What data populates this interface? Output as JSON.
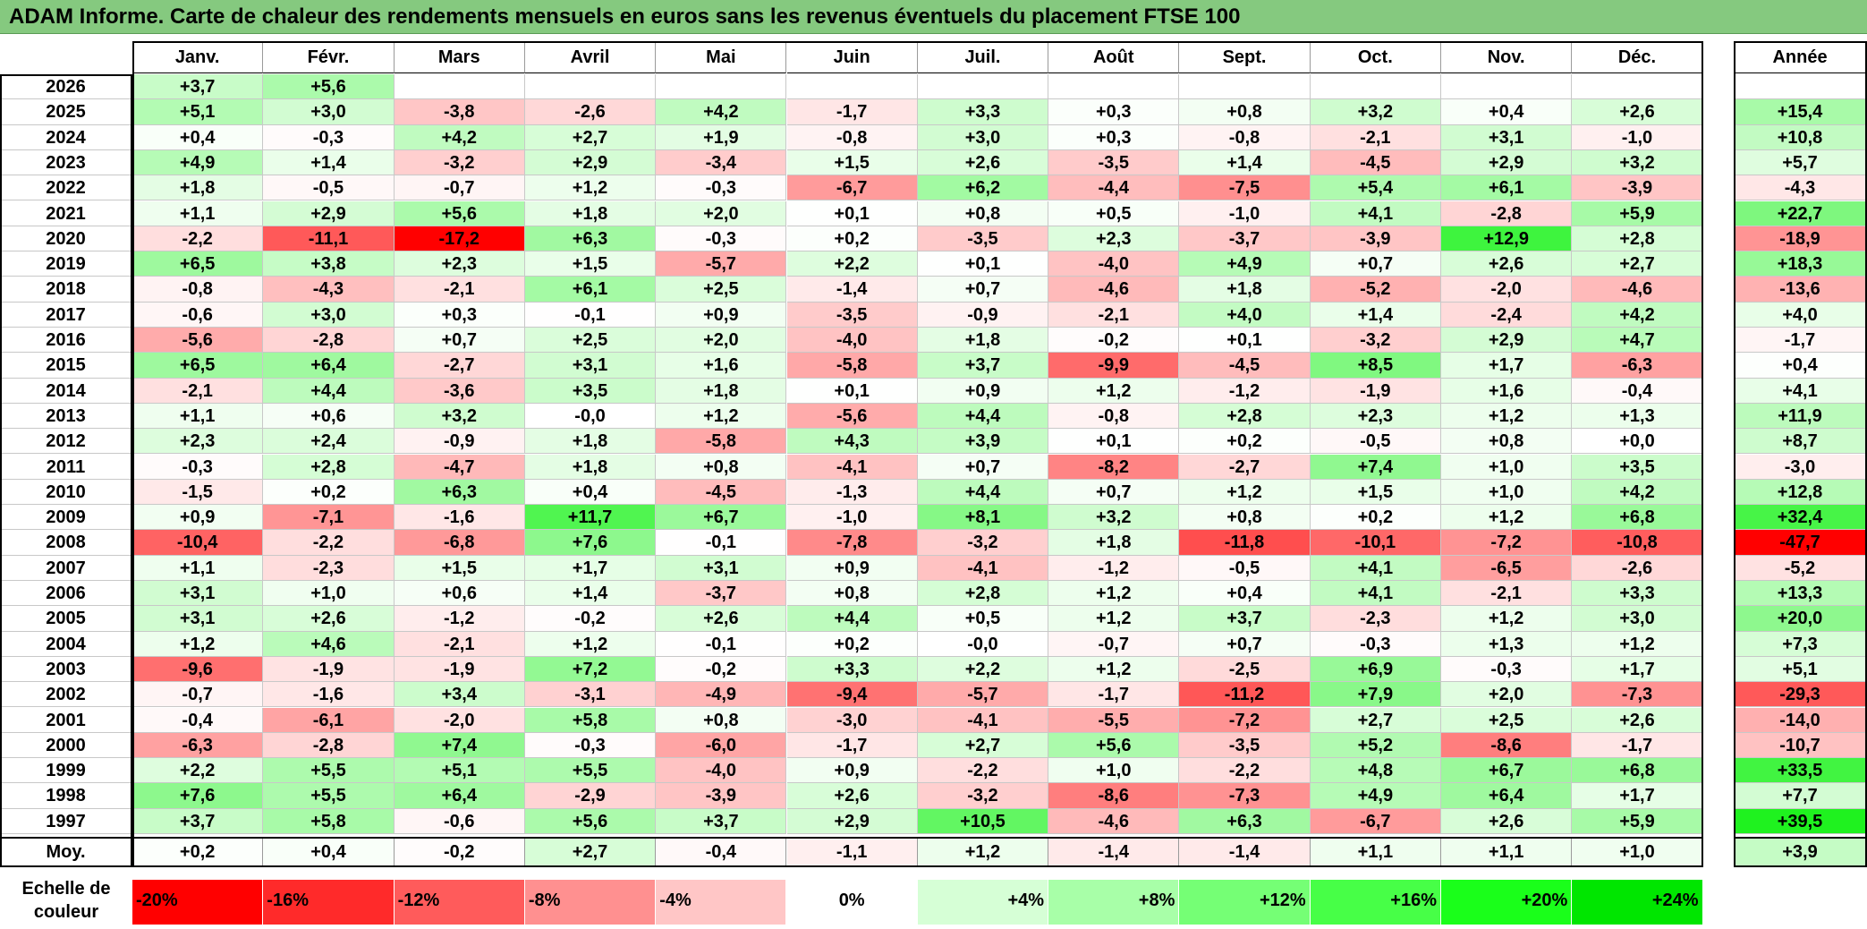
{
  "title": "ADAM Informe. Carte de chaleur des rendements mensuels en euros sans les revenus éventuels du placement FTSE 100",
  "chart_data": {
    "type": "heatmap",
    "title": "ADAM Informe. Carte de chaleur des rendements mensuels en euros sans les revenus éventuels du placement FTSE 100",
    "months": [
      "Janv.",
      "Févr.",
      "Mars",
      "Avril",
      "Mai",
      "Juin",
      "Juil.",
      "Août",
      "Sept.",
      "Oct.",
      "Nov.",
      "Déc."
    ],
    "annual_header": "Année",
    "rows": [
      {
        "year": "2026",
        "values": [
          "+3,7",
          "+5,6",
          "",
          "",
          "",
          "",
          "",
          "",
          "",
          "",
          "",
          ""
        ],
        "annual": ""
      },
      {
        "year": "2025",
        "values": [
          "+5,1",
          "+3,0",
          "-3,8",
          "-2,6",
          "+4,2",
          "-1,7",
          "+3,3",
          "+0,3",
          "+0,8",
          "+3,2",
          "+0,4",
          "+2,6"
        ],
        "annual": "+15,4"
      },
      {
        "year": "2024",
        "values": [
          "+0,4",
          "-0,3",
          "+4,2",
          "+2,7",
          "+1,9",
          "-0,8",
          "+3,0",
          "+0,3",
          "-0,8",
          "-2,1",
          "+3,1",
          "-1,0"
        ],
        "annual": "+10,8"
      },
      {
        "year": "2023",
        "values": [
          "+4,9",
          "+1,4",
          "-3,2",
          "+2,9",
          "-3,4",
          "+1,5",
          "+2,6",
          "-3,5",
          "+1,4",
          "-4,5",
          "+2,9",
          "+3,2"
        ],
        "annual": "+5,7"
      },
      {
        "year": "2022",
        "values": [
          "+1,8",
          "-0,5",
          "-0,7",
          "+1,2",
          "-0,3",
          "-6,7",
          "+6,2",
          "-4,4",
          "-7,5",
          "+5,4",
          "+6,1",
          "-3,9"
        ],
        "annual": "-4,3"
      },
      {
        "year": "2021",
        "values": [
          "+1,1",
          "+2,9",
          "+5,6",
          "+1,8",
          "+2,0",
          "+0,1",
          "+0,8",
          "+0,5",
          "-1,0",
          "+4,1",
          "-2,8",
          "+5,9"
        ],
        "annual": "+22,7"
      },
      {
        "year": "2020",
        "values": [
          "-2,2",
          "-11,1",
          "-17,2",
          "+6,3",
          "-0,3",
          "+0,2",
          "-3,5",
          "+2,3",
          "-3,7",
          "-3,9",
          "+12,9",
          "+2,8"
        ],
        "annual": "-18,9"
      },
      {
        "year": "2019",
        "values": [
          "+6,5",
          "+3,8",
          "+2,3",
          "+1,5",
          "-5,7",
          "+2,2",
          "+0,1",
          "-4,0",
          "+4,9",
          "+0,7",
          "+2,6",
          "+2,7"
        ],
        "annual": "+18,3"
      },
      {
        "year": "2018",
        "values": [
          "-0,8",
          "-4,3",
          "-2,1",
          "+6,1",
          "+2,5",
          "-1,4",
          "+0,7",
          "-4,6",
          "+1,8",
          "-5,2",
          "-2,0",
          "-4,6"
        ],
        "annual": "-13,6"
      },
      {
        "year": "2017",
        "values": [
          "-0,6",
          "+3,0",
          "+0,3",
          "-0,1",
          "+0,9",
          "-3,5",
          "-0,9",
          "-2,1",
          "+4,0",
          "+1,4",
          "-2,4",
          "+4,2"
        ],
        "annual": "+4,0"
      },
      {
        "year": "2016",
        "values": [
          "-5,6",
          "-2,8",
          "+0,7",
          "+2,5",
          "+2,0",
          "-4,0",
          "+1,8",
          "-0,2",
          "+0,1",
          "-3,2",
          "+2,9",
          "+4,7"
        ],
        "annual": "-1,7"
      },
      {
        "year": "2015",
        "values": [
          "+6,5",
          "+6,4",
          "-2,7",
          "+3,1",
          "+1,6",
          "-5,8",
          "+3,7",
          "-9,9",
          "-4,5",
          "+8,5",
          "+1,7",
          "-6,3"
        ],
        "annual": "+0,4"
      },
      {
        "year": "2014",
        "values": [
          "-2,1",
          "+4,4",
          "-3,6",
          "+3,5",
          "+1,8",
          "+0,1",
          "+0,9",
          "+1,2",
          "-1,2",
          "-1,9",
          "+1,6",
          "-0,4"
        ],
        "annual": "+4,1"
      },
      {
        "year": "2013",
        "values": [
          "+1,1",
          "+0,6",
          "+3,2",
          "-0,0",
          "+1,2",
          "-5,6",
          "+4,4",
          "-0,8",
          "+2,8",
          "+2,3",
          "+1,2",
          "+1,3"
        ],
        "annual": "+11,9"
      },
      {
        "year": "2012",
        "values": [
          "+2,3",
          "+2,4",
          "-0,9",
          "+1,8",
          "-5,8",
          "+4,3",
          "+3,9",
          "+0,1",
          "+0,2",
          "-0,5",
          "+0,8",
          "+0,0"
        ],
        "annual": "+8,7"
      },
      {
        "year": "2011",
        "values": [
          "-0,3",
          "+2,8",
          "-4,7",
          "+1,8",
          "+0,8",
          "-4,1",
          "+0,7",
          "-8,2",
          "-2,7",
          "+7,4",
          "+1,0",
          "+3,5"
        ],
        "annual": "-3,0"
      },
      {
        "year": "2010",
        "values": [
          "-1,5",
          "+0,2",
          "+6,3",
          "+0,4",
          "-4,5",
          "-1,3",
          "+4,4",
          "+0,7",
          "+1,2",
          "+1,5",
          "+1,0",
          "+4,2"
        ],
        "annual": "+12,8"
      },
      {
        "year": "2009",
        "values": [
          "+0,9",
          "-7,1",
          "-1,6",
          "+11,7",
          "+6,7",
          "-1,0",
          "+8,1",
          "+3,2",
          "+0,8",
          "+0,2",
          "+1,2",
          "+6,8"
        ],
        "annual": "+32,4"
      },
      {
        "year": "2008",
        "values": [
          "-10,4",
          "-2,2",
          "-6,8",
          "+7,6",
          "-0,1",
          "-7,8",
          "-3,2",
          "+1,8",
          "-11,8",
          "-10,1",
          "-7,2",
          "-10,8"
        ],
        "annual": "-47,7"
      },
      {
        "year": "2007",
        "values": [
          "+1,1",
          "-2,3",
          "+1,5",
          "+1,7",
          "+3,1",
          "+0,9",
          "-4,1",
          "-1,2",
          "-0,5",
          "+4,1",
          "-6,5",
          "-2,6"
        ],
        "annual": "-5,2"
      },
      {
        "year": "2006",
        "values": [
          "+3,1",
          "+1,0",
          "+0,6",
          "+1,4",
          "-3,7",
          "+0,8",
          "+2,8",
          "+1,2",
          "+0,4",
          "+4,1",
          "-2,1",
          "+3,3"
        ],
        "annual": "+13,3"
      },
      {
        "year": "2005",
        "values": [
          "+3,1",
          "+2,6",
          "-1,2",
          "-0,2",
          "+2,6",
          "+4,4",
          "+0,5",
          "+1,2",
          "+3,7",
          "-2,3",
          "+1,2",
          "+3,0"
        ],
        "annual": "+20,0"
      },
      {
        "year": "2004",
        "values": [
          "+1,2",
          "+4,6",
          "-2,1",
          "+1,2",
          "-0,1",
          "+0,2",
          "-0,0",
          "-0,7",
          "+0,7",
          "-0,3",
          "+1,3",
          "+1,2"
        ],
        "annual": "+7,3"
      },
      {
        "year": "2003",
        "values": [
          "-9,6",
          "-1,9",
          "-1,9",
          "+7,2",
          "-0,2",
          "+3,3",
          "+2,2",
          "+1,2",
          "-2,5",
          "+6,9",
          "-0,3",
          "+1,7"
        ],
        "annual": "+5,1"
      },
      {
        "year": "2002",
        "values": [
          "-0,7",
          "-1,6",
          "+3,4",
          "-3,1",
          "-4,9",
          "-9,4",
          "-5,7",
          "-1,7",
          "-11,2",
          "+7,9",
          "+2,0",
          "-7,3"
        ],
        "annual": "-29,3"
      },
      {
        "year": "2001",
        "values": [
          "-0,4",
          "-6,1",
          "-2,0",
          "+5,8",
          "+0,8",
          "-3,0",
          "-4,1",
          "-5,5",
          "-7,2",
          "+2,7",
          "+2,5",
          "+2,6"
        ],
        "annual": "-14,0"
      },
      {
        "year": "2000",
        "values": [
          "-6,3",
          "-2,8",
          "+7,4",
          "-0,3",
          "-6,0",
          "-1,7",
          "+2,7",
          "+5,6",
          "-3,5",
          "+5,2",
          "-8,6",
          "-1,7"
        ],
        "annual": "-10,7"
      },
      {
        "year": "1999",
        "values": [
          "+2,2",
          "+5,5",
          "+5,1",
          "+5,5",
          "-4,0",
          "+0,9",
          "-2,2",
          "+1,0",
          "-2,2",
          "+4,8",
          "+6,7",
          "+6,8"
        ],
        "annual": "+33,5"
      },
      {
        "year": "1998",
        "values": [
          "+7,6",
          "+5,5",
          "+6,4",
          "-2,9",
          "-3,9",
          "+2,6",
          "-3,2",
          "-8,6",
          "-7,3",
          "+4,9",
          "+6,4",
          "+1,7"
        ],
        "annual": "+7,7"
      },
      {
        "year": "1997",
        "values": [
          "+3,7",
          "+5,8",
          "-0,6",
          "+5,6",
          "+3,7",
          "+2,9",
          "+10,5",
          "-4,6",
          "+6,3",
          "-6,7",
          "+2,6",
          "+5,9"
        ],
        "annual": "+39,5"
      }
    ],
    "average": {
      "label": "Moy.",
      "values": [
        "+0,2",
        "+0,4",
        "-0,2",
        "+2,7",
        "-0,4",
        "-1,1",
        "+1,2",
        "-1,4",
        "-1,4",
        "+1,1",
        "+1,1",
        "+1,0"
      ],
      "annual": "+3,9"
    },
    "scale": {
      "label": "Echelle de\ncouleur",
      "steps": [
        {
          "label": "-20%",
          "value": -20,
          "color": "#ff0000"
        },
        {
          "label": "-16%",
          "value": -16,
          "color": "#ff2a2a"
        },
        {
          "label": "-12%",
          "value": -12,
          "color": "#ff5b5b"
        },
        {
          "label": "-8%",
          "value": -8,
          "color": "#ff9090"
        },
        {
          "label": "-4%",
          "value": -4,
          "color": "#ffc6c6"
        },
        {
          "label": "0%",
          "value": 0,
          "color": "#ffffff"
        },
        {
          "label": "+4%",
          "value": 4,
          "color": "#d6ffd6"
        },
        {
          "label": "+8%",
          "value": 8,
          "color": "#a8ffa8"
        },
        {
          "label": "+12%",
          "value": 12,
          "color": "#75ff75"
        },
        {
          "label": "+16%",
          "value": 16,
          "color": "#47ff47"
        },
        {
          "label": "+20%",
          "value": 20,
          "color": "#1aff1a"
        },
        {
          "label": "+24%",
          "value": 24,
          "color": "#00e600"
        }
      ]
    }
  }
}
